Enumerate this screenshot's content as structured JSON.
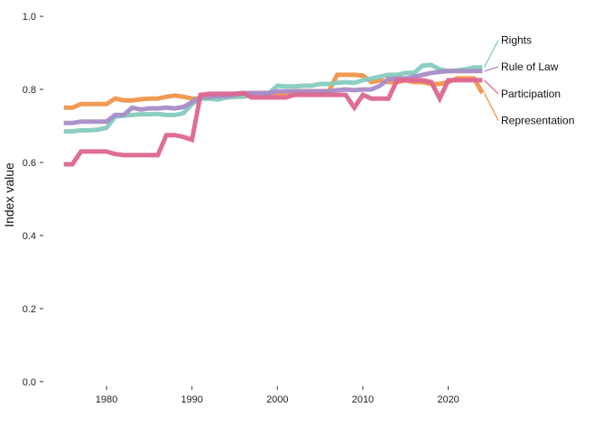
{
  "chart_data": {
    "type": "line",
    "title": "",
    "xlabel": "",
    "ylabel": "Index value",
    "xlim": [
      1974.5,
      2036
    ],
    "ylim": [
      -0.02,
      1.02
    ],
    "grid": false,
    "legend": "direct labels at line ends",
    "x_ticks": [
      {
        "value": 1980,
        "label": "1980"
      },
      {
        "value": 1990,
        "label": "1990"
      },
      {
        "value": 2000,
        "label": "2000"
      },
      {
        "value": 2010,
        "label": "2010"
      },
      {
        "value": 2020,
        "label": "2020"
      }
    ],
    "y_ticks": [
      {
        "value": 0.0,
        "label": "0.0"
      },
      {
        "value": 0.2,
        "label": "0.2"
      },
      {
        "value": 0.4,
        "label": "0.4"
      },
      {
        "value": 0.6,
        "label": "0.6"
      },
      {
        "value": 0.8,
        "label": "0.8"
      },
      {
        "value": 1.0,
        "label": "1.0"
      }
    ],
    "x": [
      1975,
      1976,
      1977,
      1978,
      1979,
      1980,
      1981,
      1982,
      1983,
      1984,
      1985,
      1986,
      1987,
      1988,
      1989,
      1990,
      1991,
      1992,
      1993,
      1994,
      1995,
      1996,
      1997,
      1998,
      1999,
      2000,
      2001,
      2002,
      2003,
      2004,
      2005,
      2006,
      2007,
      2008,
      2009,
      2010,
      2011,
      2012,
      2013,
      2014,
      2015,
      2016,
      2017,
      2018,
      2019,
      2020,
      2021,
      2022,
      2023,
      2024
    ],
    "series": [
      {
        "name": "Representation",
        "color": "#F0954A",
        "label_y": 0.715,
        "values": [
          0.75,
          0.75,
          0.76,
          0.76,
          0.76,
          0.76,
          0.775,
          0.77,
          0.77,
          0.773,
          0.775,
          0.775,
          0.78,
          0.783,
          0.78,
          0.775,
          0.775,
          0.775,
          0.778,
          0.778,
          0.78,
          0.785,
          0.79,
          0.79,
          0.79,
          0.79,
          0.79,
          0.795,
          0.795,
          0.795,
          0.795,
          0.795,
          0.84,
          0.84,
          0.84,
          0.838,
          0.82,
          0.825,
          0.82,
          0.82,
          0.825,
          0.82,
          0.82,
          0.815,
          0.815,
          0.82,
          0.83,
          0.83,
          0.83,
          0.79
        ]
      },
      {
        "name": "Rights",
        "color": "#86CBBF",
        "label_y": 0.935,
        "values": [
          0.685,
          0.685,
          0.688,
          0.688,
          0.69,
          0.695,
          0.725,
          0.728,
          0.73,
          0.732,
          0.732,
          0.733,
          0.73,
          0.73,
          0.735,
          0.76,
          0.775,
          0.775,
          0.772,
          0.778,
          0.78,
          0.78,
          0.785,
          0.79,
          0.79,
          0.81,
          0.808,
          0.808,
          0.81,
          0.81,
          0.815,
          0.815,
          0.818,
          0.82,
          0.818,
          0.825,
          0.83,
          0.835,
          0.84,
          0.84,
          0.845,
          0.845,
          0.865,
          0.867,
          0.855,
          0.85,
          0.852,
          0.855,
          0.86,
          0.86
        ]
      },
      {
        "name": "Rule of Law",
        "color": "#A98CC8",
        "label_y": 0.862,
        "values": [
          0.708,
          0.708,
          0.712,
          0.712,
          0.712,
          0.712,
          0.73,
          0.73,
          0.75,
          0.745,
          0.748,
          0.748,
          0.75,
          0.748,
          0.752,
          0.765,
          0.78,
          0.78,
          0.782,
          0.782,
          0.785,
          0.79,
          0.79,
          0.79,
          0.79,
          0.795,
          0.795,
          0.795,
          0.795,
          0.795,
          0.795,
          0.795,
          0.798,
          0.8,
          0.798,
          0.8,
          0.8,
          0.81,
          0.828,
          0.83,
          0.83,
          0.835,
          0.84,
          0.845,
          0.848,
          0.85,
          0.85,
          0.85,
          0.85,
          0.85
        ]
      },
      {
        "name": "Participation",
        "color": "#DD6690",
        "label_y": 0.788,
        "values": [
          0.595,
          0.595,
          0.63,
          0.63,
          0.63,
          0.63,
          0.623,
          0.62,
          0.62,
          0.62,
          0.62,
          0.62,
          0.675,
          0.675,
          0.67,
          0.662,
          0.785,
          0.788,
          0.788,
          0.788,
          0.788,
          0.79,
          0.778,
          0.778,
          0.778,
          0.778,
          0.778,
          0.785,
          0.785,
          0.785,
          0.785,
          0.785,
          0.785,
          0.785,
          0.75,
          0.785,
          0.775,
          0.775,
          0.775,
          0.825,
          0.825,
          0.825,
          0.825,
          0.82,
          0.775,
          0.825,
          0.825,
          0.825,
          0.825,
          0.825
        ]
      }
    ]
  }
}
